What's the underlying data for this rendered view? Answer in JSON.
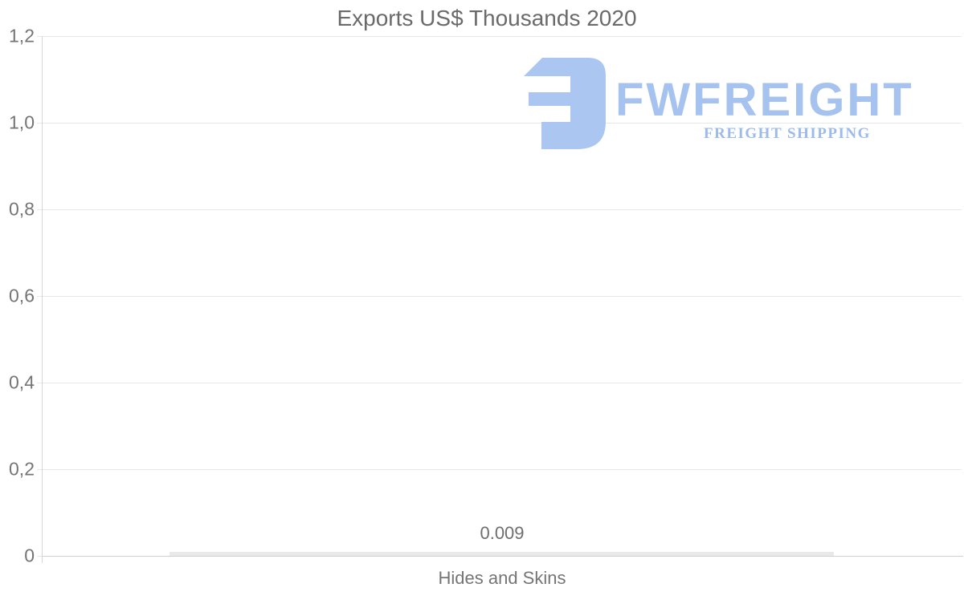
{
  "chart_data": {
    "type": "bar",
    "title": "Exports US$ Thousands 2020",
    "categories": [
      "Hides and Skins"
    ],
    "values": [
      0.009
    ],
    "value_labels": [
      "0.009"
    ],
    "xlabel": "",
    "ylabel": "",
    "ylim": [
      0,
      1.2
    ],
    "yticks": [
      {
        "label": "1,2",
        "value": 1.2
      },
      {
        "label": "1,0",
        "value": 1.0
      },
      {
        "label": "0,8",
        "value": 0.8
      },
      {
        "label": "0,6",
        "value": 0.6
      },
      {
        "label": "0,4",
        "value": 0.4
      },
      {
        "label": "0,2",
        "value": 0.2
      },
      {
        "label": "0",
        "value": 0
      }
    ],
    "grid": true,
    "legend": false,
    "bar_color": "#e9e9e9"
  },
  "watermark": {
    "brand": "FWFREIGHT",
    "tagline": "FREIGHT SHIPPING",
    "logo_icon": "fwfreight-monogram-icon",
    "logo_color": "#abc7f1",
    "brand_color": "#a6c3ef",
    "tagline_color": "#9cbbec"
  },
  "colors": {
    "title_text": "#6a6a6a",
    "axis_label": "#757575",
    "value_label": "#6e6e6e",
    "category_label": "#757575",
    "gridline": "#e7e7e7",
    "axis_line": "#d6d6d6",
    "baseline": "#d0d0d0",
    "background": "#ffffff"
  }
}
